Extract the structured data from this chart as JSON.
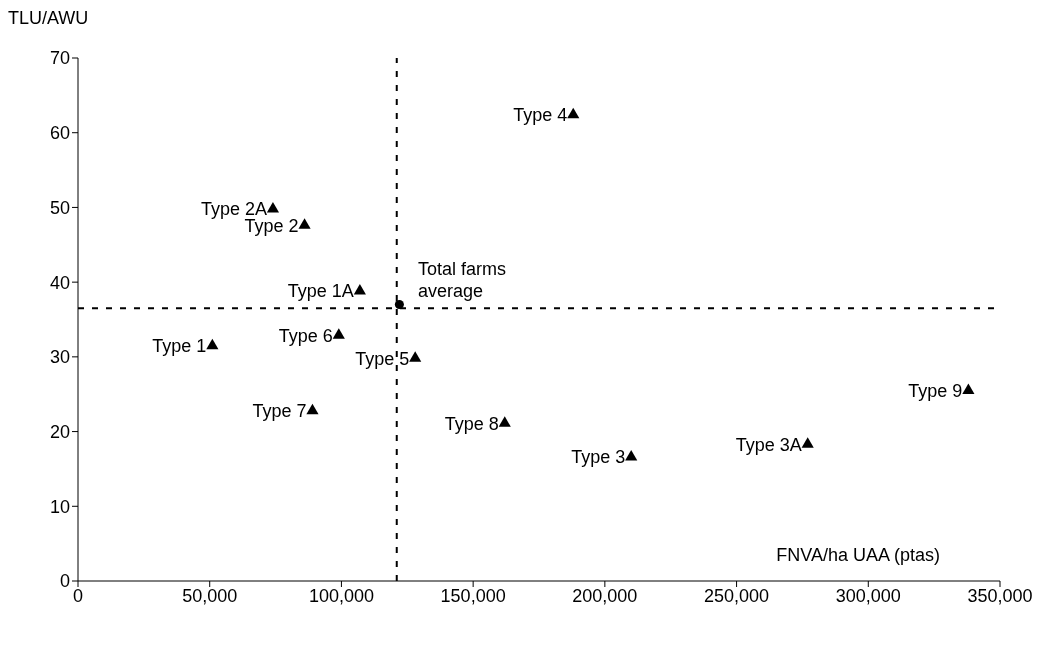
{
  "chart_data": {
    "type": "scatter",
    "xlabel": "FNVA/ha UAA (ptas)",
    "ylabel": "TLU/AWU",
    "xlim": [
      0,
      350000
    ],
    "ylim": [
      0,
      70
    ],
    "xticks": [
      {
        "value": 0,
        "label": "0"
      },
      {
        "value": 50000,
        "label": "50,000"
      },
      {
        "value": 100000,
        "label": "100,000"
      },
      {
        "value": 150000,
        "label": "150,000"
      },
      {
        "value": 200000,
        "label": "200,000"
      },
      {
        "value": 250000,
        "label": "250,000"
      },
      {
        "value": 300000,
        "label": "300,000"
      },
      {
        "value": 350000,
        "label": "350,000"
      }
    ],
    "yticks": [
      0,
      10,
      20,
      30,
      40,
      50,
      60,
      70
    ],
    "grid": false,
    "legend": false,
    "marker": "triangle",
    "series": [
      {
        "color": "#000000",
        "x": [
          51000,
          74000,
          86000,
          107000,
          99000,
          128000,
          89000,
          162000,
          210000,
          277000,
          338000,
          188000
        ],
        "values": [
          31.5,
          49.8,
          47.6,
          38.8,
          32.9,
          29.8,
          22.8,
          21.1,
          16.6,
          18.3,
          25.5,
          62.4
        ]
      },
      {
        "name": "Total farms average",
        "color": "#000000",
        "marker": "circle",
        "x": [
          122000
        ],
        "values": [
          37
        ]
      }
    ],
    "ref_lines": [
      {
        "axis": "x",
        "value": 121000,
        "line_style": "dashed",
        "color": "#000000"
      },
      {
        "axis": "y",
        "value": 36.5,
        "line_style": "dashed",
        "color": "#000000"
      }
    ],
    "annotations": [
      {
        "text": "Type 1",
        "x": 51000,
        "y": 31.5
      },
      {
        "text": "Type 2A",
        "x": 74000,
        "y": 49.8
      },
      {
        "text": "Type 2",
        "x": 86000,
        "y": 47.6
      },
      {
        "text": "Type 1A",
        "x": 107000,
        "y": 38.8
      },
      {
        "text": "Type 6",
        "x": 99000,
        "y": 32.9
      },
      {
        "text": "Type 5",
        "x": 128000,
        "y": 29.8
      },
      {
        "text": "Type 7",
        "x": 89000,
        "y": 22.8
      },
      {
        "text": "Type 8",
        "x": 162000,
        "y": 21.1
      },
      {
        "text": "Type 3",
        "x": 210000,
        "y": 16.6
      },
      {
        "text": "Type 3A",
        "x": 277000,
        "y": 18.3
      },
      {
        "text": "Type 9",
        "x": 338000,
        "y": 25.5
      },
      {
        "text": "Type 4",
        "x": 188000,
        "y": 62.4
      }
    ]
  }
}
